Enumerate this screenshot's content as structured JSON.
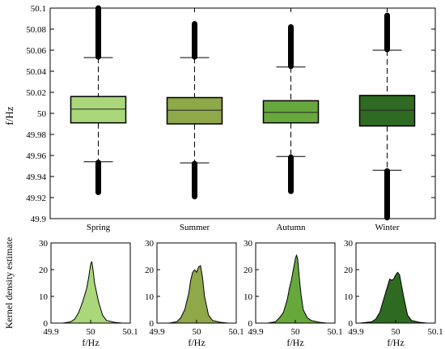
{
  "chart_data": [
    {
      "type": "box",
      "ylabel": "f/Hz",
      "ylim": [
        49.9,
        50.1
      ],
      "yticks": [
        49.9,
        49.92,
        49.94,
        49.96,
        49.98,
        50,
        50.02,
        50.04,
        50.06,
        50.08,
        50.1
      ],
      "yticklabels": [
        "49.9",
        "49.92",
        "49.94",
        "49.96",
        "49.98",
        "50",
        "50.02",
        "50.04",
        "50.06",
        "50.08",
        "50.1"
      ],
      "categories": [
        "Spring",
        "Summer",
        "Autumn",
        "Winter"
      ],
      "colors": [
        "#a9d779",
        "#8ea84a",
        "#67a83d",
        "#2f6a22"
      ],
      "boxes": [
        {
          "q1": 49.991,
          "median": 50.004,
          "q3": 50.016,
          "whisker_low": 49.954,
          "whisker_high": 50.053,
          "outlier_low_min": 49.925,
          "outlier_high_max": 50.1
        },
        {
          "q1": 49.99,
          "median": 50.003,
          "q3": 50.015,
          "whisker_low": 49.953,
          "whisker_high": 50.053,
          "outlier_low_min": 49.921,
          "outlier_high_max": 50.085
        },
        {
          "q1": 49.991,
          "median": 50.001,
          "q3": 50.012,
          "whisker_low": 49.959,
          "whisker_high": 50.044,
          "outlier_low_min": 49.926,
          "outlier_high_max": 50.082
        },
        {
          "q1": 49.988,
          "median": 50.003,
          "q3": 50.017,
          "whisker_low": 49.946,
          "whisker_high": 50.06,
          "outlier_low_min": 49.901,
          "outlier_high_max": 50.093
        }
      ]
    },
    {
      "type": "area",
      "panels": [
        {
          "season": "Spring",
          "color": "#a9d779",
          "x": [
            49.93,
            49.95,
            49.96,
            49.97,
            49.98,
            49.99,
            49.995,
            50.0,
            50.003,
            50.006,
            50.01,
            50.02,
            50.03,
            50.04,
            50.06,
            50.08
          ],
          "y": [
            0,
            0.5,
            1.5,
            4,
            8,
            13,
            17,
            22,
            23,
            20,
            15,
            8,
            3,
            1,
            0.3,
            0
          ]
        },
        {
          "season": "Summer",
          "color": "#8ea84a",
          "x": [
            49.93,
            49.95,
            49.96,
            49.97,
            49.98,
            49.985,
            49.99,
            49.995,
            50.0,
            50.005,
            50.01,
            50.015,
            50.02,
            50.03,
            50.04,
            50.06,
            50.08
          ],
          "y": [
            0,
            0.5,
            2,
            5,
            11,
            16,
            19,
            20,
            19,
            21,
            21.5,
            17,
            10,
            3,
            1,
            0.3,
            0
          ]
        },
        {
          "season": "Autumn",
          "color": "#67a83d",
          "x": [
            49.93,
            49.95,
            49.96,
            49.97,
            49.98,
            49.985,
            49.99,
            49.995,
            50.0,
            50.003,
            50.006,
            50.01,
            50.015,
            50.02,
            50.03,
            50.04,
            50.06,
            50.08
          ],
          "y": [
            0,
            0.5,
            2,
            4,
            9,
            13,
            16,
            20,
            24,
            25.5,
            24,
            17,
            10,
            5,
            2,
            1,
            0.3,
            0
          ]
        },
        {
          "season": "Winter",
          "color": "#2f6a22",
          "x": [
            49.91,
            49.94,
            49.95,
            49.96,
            49.97,
            49.98,
            49.985,
            49.99,
            49.995,
            50.0,
            50.005,
            50.01,
            50.015,
            50.02,
            50.03,
            50.04,
            50.06,
            50.08
          ],
          "y": [
            0,
            0.5,
            1.5,
            4,
            9,
            14,
            16.5,
            16,
            16.5,
            18,
            19,
            18,
            14,
            10,
            3,
            1,
            0.3,
            0
          ]
        }
      ],
      "ylabel": "Kernel density estimate",
      "xlabel": "f/Hz",
      "xlim": [
        49.9,
        50.1
      ],
      "ylim": [
        0,
        30
      ],
      "xticks": [
        49.9,
        50,
        50.1
      ],
      "xticklabels": [
        "49.9",
        "50",
        "50.1"
      ],
      "yticks": [
        0,
        10,
        20,
        30
      ],
      "yticklabels": [
        "0",
        "10",
        "20",
        "30"
      ]
    }
  ]
}
